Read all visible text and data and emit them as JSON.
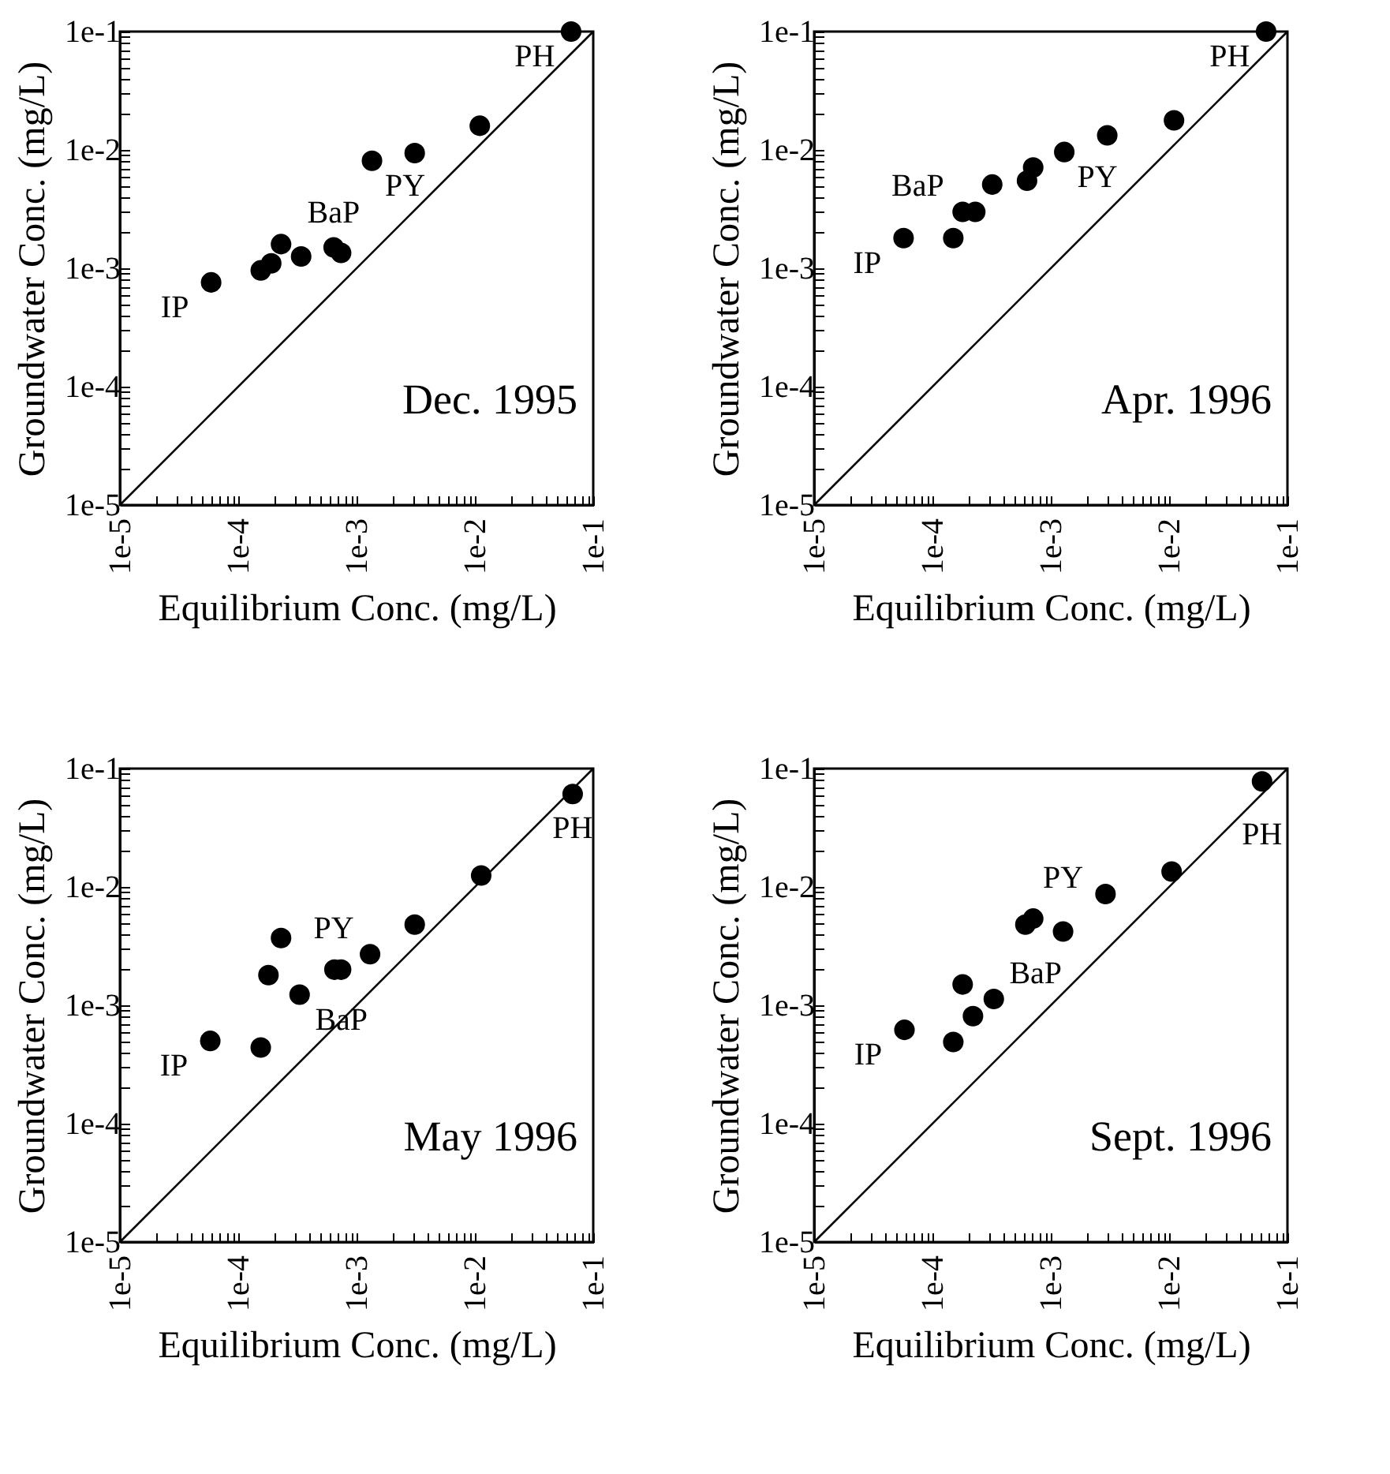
{
  "chart_data": [
    {
      "type": "scatter",
      "xlabel": "Equilibrium Conc. (mg/L)",
      "ylabel": "Groundwater Conc. (mg/L)",
      "log": "xy",
      "grid": false,
      "xlim": [
        1e-05,
        0.1
      ],
      "ylim": [
        1e-05,
        0.1
      ],
      "xticks": [
        {
          "value": 1e-05,
          "label": "1e-5"
        },
        {
          "value": 2e-05,
          "label": null
        },
        {
          "value": 3e-05,
          "label": null
        },
        {
          "value": 4e-05,
          "label": null
        },
        {
          "value": 5e-05,
          "label": null
        },
        {
          "value": 6e-05,
          "label": null
        },
        {
          "value": 7e-05,
          "label": null
        },
        {
          "value": 8e-05,
          "label": null
        },
        {
          "value": 9e-05,
          "label": null
        },
        {
          "value": 0.0001,
          "label": "1e-4"
        },
        {
          "value": 0.0002,
          "label": null
        },
        {
          "value": 0.0003,
          "label": null
        },
        {
          "value": 0.0004,
          "label": null
        },
        {
          "value": 0.0005,
          "label": null
        },
        {
          "value": 0.0006,
          "label": null
        },
        {
          "value": 0.0007,
          "label": null
        },
        {
          "value": 0.0008,
          "label": null
        },
        {
          "value": 0.0009,
          "label": null
        },
        {
          "value": 0.001,
          "label": "1e-3"
        },
        {
          "value": 0.002,
          "label": null
        },
        {
          "value": 0.003,
          "label": null
        },
        {
          "value": 0.004,
          "label": null
        },
        {
          "value": 0.005,
          "label": null
        },
        {
          "value": 0.006,
          "label": null
        },
        {
          "value": 0.007,
          "label": null
        },
        {
          "value": 0.008,
          "label": null
        },
        {
          "value": 0.009,
          "label": null
        },
        {
          "value": 0.01,
          "label": "1e-2"
        },
        {
          "value": 0.02,
          "label": null
        },
        {
          "value": 0.03,
          "label": null
        },
        {
          "value": 0.04,
          "label": null
        },
        {
          "value": 0.05,
          "label": null
        },
        {
          "value": 0.06,
          "label": null
        },
        {
          "value": 0.07,
          "label": null
        },
        {
          "value": 0.08,
          "label": null
        },
        {
          "value": 0.09,
          "label": null
        },
        {
          "value": 0.1,
          "label": "1e-1"
        }
      ],
      "yticks": [
        {
          "value": 1e-05,
          "label": "1e-5"
        },
        {
          "value": 2e-05,
          "label": null
        },
        {
          "value": 3e-05,
          "label": null
        },
        {
          "value": 4e-05,
          "label": null
        },
        {
          "value": 5e-05,
          "label": null
        },
        {
          "value": 6e-05,
          "label": null
        },
        {
          "value": 7e-05,
          "label": null
        },
        {
          "value": 8e-05,
          "label": null
        },
        {
          "value": 9e-05,
          "label": null
        },
        {
          "value": 0.0001,
          "label": "1e-4"
        },
        {
          "value": 0.0002,
          "label": null
        },
        {
          "value": 0.0003,
          "label": null
        },
        {
          "value": 0.0004,
          "label": null
        },
        {
          "value": 0.0005,
          "label": null
        },
        {
          "value": 0.0006,
          "label": null
        },
        {
          "value": 0.0007,
          "label": null
        },
        {
          "value": 0.0008,
          "label": null
        },
        {
          "value": 0.0009,
          "label": null
        },
        {
          "value": 0.001,
          "label": "1e-3"
        },
        {
          "value": 0.002,
          "label": null
        },
        {
          "value": 0.003,
          "label": null
        },
        {
          "value": 0.004,
          "label": null
        },
        {
          "value": 0.005,
          "label": null
        },
        {
          "value": 0.006,
          "label": null
        },
        {
          "value": 0.007,
          "label": null
        },
        {
          "value": 0.008,
          "label": null
        },
        {
          "value": 0.009,
          "label": null
        },
        {
          "value": 0.01,
          "label": "1e-2"
        },
        {
          "value": 0.02,
          "label": null
        },
        {
          "value": 0.03,
          "label": null
        },
        {
          "value": 0.04,
          "label": null
        },
        {
          "value": 0.05,
          "label": null
        },
        {
          "value": 0.06,
          "label": null
        },
        {
          "value": 0.07,
          "label": null
        },
        {
          "value": 0.08,
          "label": null
        },
        {
          "value": 0.09,
          "label": null
        },
        {
          "value": 0.1,
          "label": "1e-1"
        }
      ],
      "series": [
        {
          "color": "#000000",
          "marker": "circle",
          "x": [
            5.9e-05,
            0.000155,
            0.00019,
            0.00023,
            0.00034,
            0.00064,
            0.00074,
            0.00135,
            0.0031,
            0.011,
            0.065
          ],
          "values": [
            0.00076,
            0.00096,
            0.0011,
            0.0016,
            0.00126,
            0.0015,
            0.00135,
            0.0081,
            0.0094,
            0.016,
            0.1
          ],
          "value_labels": [
            "IP",
            null,
            null,
            null,
            null,
            "BaP",
            null,
            "PY",
            null,
            null,
            "PH"
          ]
        },
        {
          "type": "line",
          "color": "#000000",
          "marker": "none",
          "x": [
            1e-05,
            0.1
          ],
          "values": [
            1e-05,
            0.1
          ]
        }
      ],
      "annotations": [
        "Dec. 1995"
      ]
    },
    {
      "type": "scatter",
      "xlabel": "Equilibrium Conc. (mg/L)",
      "ylabel": "Groundwater Conc. (mg/L)",
      "log": "xy",
      "grid": false,
      "xlim": [
        1e-05,
        0.1
      ],
      "ylim": [
        1e-05,
        0.1
      ],
      "xticks": [
        {
          "value": 1e-05,
          "label": "1e-5"
        },
        {
          "value": 2e-05,
          "label": null
        },
        {
          "value": 3e-05,
          "label": null
        },
        {
          "value": 4e-05,
          "label": null
        },
        {
          "value": 5e-05,
          "label": null
        },
        {
          "value": 6e-05,
          "label": null
        },
        {
          "value": 7e-05,
          "label": null
        },
        {
          "value": 8e-05,
          "label": null
        },
        {
          "value": 9e-05,
          "label": null
        },
        {
          "value": 0.0001,
          "label": "1e-4"
        },
        {
          "value": 0.0002,
          "label": null
        },
        {
          "value": 0.0003,
          "label": null
        },
        {
          "value": 0.0004,
          "label": null
        },
        {
          "value": 0.0005,
          "label": null
        },
        {
          "value": 0.0006,
          "label": null
        },
        {
          "value": 0.0007,
          "label": null
        },
        {
          "value": 0.0008,
          "label": null
        },
        {
          "value": 0.0009,
          "label": null
        },
        {
          "value": 0.001,
          "label": "1e-3"
        },
        {
          "value": 0.002,
          "label": null
        },
        {
          "value": 0.003,
          "label": null
        },
        {
          "value": 0.004,
          "label": null
        },
        {
          "value": 0.005,
          "label": null
        },
        {
          "value": 0.006,
          "label": null
        },
        {
          "value": 0.007,
          "label": null
        },
        {
          "value": 0.008,
          "label": null
        },
        {
          "value": 0.009,
          "label": null
        },
        {
          "value": 0.01,
          "label": "1e-2"
        },
        {
          "value": 0.02,
          "label": null
        },
        {
          "value": 0.03,
          "label": null
        },
        {
          "value": 0.04,
          "label": null
        },
        {
          "value": 0.05,
          "label": null
        },
        {
          "value": 0.06,
          "label": null
        },
        {
          "value": 0.07,
          "label": null
        },
        {
          "value": 0.08,
          "label": null
        },
        {
          "value": 0.09,
          "label": null
        },
        {
          "value": 0.1,
          "label": "1e-1"
        }
      ],
      "yticks": [
        {
          "value": 1e-05,
          "label": "1e-5"
        },
        {
          "value": 2e-05,
          "label": null
        },
        {
          "value": 3e-05,
          "label": null
        },
        {
          "value": 4e-05,
          "label": null
        },
        {
          "value": 5e-05,
          "label": null
        },
        {
          "value": 6e-05,
          "label": null
        },
        {
          "value": 7e-05,
          "label": null
        },
        {
          "value": 8e-05,
          "label": null
        },
        {
          "value": 9e-05,
          "label": null
        },
        {
          "value": 0.0001,
          "label": "1e-4"
        },
        {
          "value": 0.0002,
          "label": null
        },
        {
          "value": 0.0003,
          "label": null
        },
        {
          "value": 0.0004,
          "label": null
        },
        {
          "value": 0.0005,
          "label": null
        },
        {
          "value": 0.0006,
          "label": null
        },
        {
          "value": 0.0007,
          "label": null
        },
        {
          "value": 0.0008,
          "label": null
        },
        {
          "value": 0.0009,
          "label": null
        },
        {
          "value": 0.001,
          "label": "1e-3"
        },
        {
          "value": 0.002,
          "label": null
        },
        {
          "value": 0.003,
          "label": null
        },
        {
          "value": 0.004,
          "label": null
        },
        {
          "value": 0.005,
          "label": null
        },
        {
          "value": 0.006,
          "label": null
        },
        {
          "value": 0.007,
          "label": null
        },
        {
          "value": 0.008,
          "label": null
        },
        {
          "value": 0.009,
          "label": null
        },
        {
          "value": 0.01,
          "label": "1e-2"
        },
        {
          "value": 0.02,
          "label": null
        },
        {
          "value": 0.03,
          "label": null
        },
        {
          "value": 0.04,
          "label": null
        },
        {
          "value": 0.05,
          "label": null
        },
        {
          "value": 0.06,
          "label": null
        },
        {
          "value": 0.07,
          "label": null
        },
        {
          "value": 0.08,
          "label": null
        },
        {
          "value": 0.09,
          "label": null
        },
        {
          "value": 0.1,
          "label": "1e-1"
        }
      ],
      "series": [
        {
          "color": "#000000",
          "marker": "circle",
          "x": [
            5.7e-05,
            0.00015,
            0.00018,
            0.00023,
            0.00032,
            0.00063,
            0.00071,
            0.0013,
            0.003,
            0.011,
            0.066
          ],
          "values": [
            0.0018,
            0.0018,
            0.003,
            0.003,
            0.0051,
            0.0055,
            0.0071,
            0.0096,
            0.0133,
            0.0178,
            0.1
          ],
          "value_labels": [
            "IP",
            null,
            "BaP",
            null,
            null,
            null,
            null,
            "PY",
            null,
            null,
            "PH"
          ]
        },
        {
          "type": "line",
          "color": "#000000",
          "marker": "none",
          "x": [
            1e-05,
            0.1
          ],
          "values": [
            1e-05,
            0.1
          ]
        }
      ],
      "annotations": [
        "Apr. 1996"
      ]
    },
    {
      "type": "scatter",
      "xlabel": "Equilibrium Conc. (mg/L)",
      "ylabel": "Groundwater Conc. (mg/L)",
      "log": "xy",
      "grid": false,
      "xlim": [
        1e-05,
        0.1
      ],
      "ylim": [
        1e-05,
        0.1
      ],
      "xticks": [
        {
          "value": 1e-05,
          "label": "1e-5"
        },
        {
          "value": 2e-05,
          "label": null
        },
        {
          "value": 3e-05,
          "label": null
        },
        {
          "value": 4e-05,
          "label": null
        },
        {
          "value": 5e-05,
          "label": null
        },
        {
          "value": 6e-05,
          "label": null
        },
        {
          "value": 7e-05,
          "label": null
        },
        {
          "value": 8e-05,
          "label": null
        },
        {
          "value": 9e-05,
          "label": null
        },
        {
          "value": 0.0001,
          "label": "1e-4"
        },
        {
          "value": 0.0002,
          "label": null
        },
        {
          "value": 0.0003,
          "label": null
        },
        {
          "value": 0.0004,
          "label": null
        },
        {
          "value": 0.0005,
          "label": null
        },
        {
          "value": 0.0006,
          "label": null
        },
        {
          "value": 0.0007,
          "label": null
        },
        {
          "value": 0.0008,
          "label": null
        },
        {
          "value": 0.0009,
          "label": null
        },
        {
          "value": 0.001,
          "label": "1e-3"
        },
        {
          "value": 0.002,
          "label": null
        },
        {
          "value": 0.003,
          "label": null
        },
        {
          "value": 0.004,
          "label": null
        },
        {
          "value": 0.005,
          "label": null
        },
        {
          "value": 0.006,
          "label": null
        },
        {
          "value": 0.007,
          "label": null
        },
        {
          "value": 0.008,
          "label": null
        },
        {
          "value": 0.009,
          "label": null
        },
        {
          "value": 0.01,
          "label": "1e-2"
        },
        {
          "value": 0.02,
          "label": null
        },
        {
          "value": 0.03,
          "label": null
        },
        {
          "value": 0.04,
          "label": null
        },
        {
          "value": 0.05,
          "label": null
        },
        {
          "value": 0.06,
          "label": null
        },
        {
          "value": 0.07,
          "label": null
        },
        {
          "value": 0.08,
          "label": null
        },
        {
          "value": 0.09,
          "label": null
        },
        {
          "value": 0.1,
          "label": "1e-1"
        }
      ],
      "yticks": [
        {
          "value": 1e-05,
          "label": "1e-5"
        },
        {
          "value": 2e-05,
          "label": null
        },
        {
          "value": 3e-05,
          "label": null
        },
        {
          "value": 4e-05,
          "label": null
        },
        {
          "value": 5e-05,
          "label": null
        },
        {
          "value": 6e-05,
          "label": null
        },
        {
          "value": 7e-05,
          "label": null
        },
        {
          "value": 8e-05,
          "label": null
        },
        {
          "value": 9e-05,
          "label": null
        },
        {
          "value": 0.0001,
          "label": "1e-4"
        },
        {
          "value": 0.0002,
          "label": null
        },
        {
          "value": 0.0003,
          "label": null
        },
        {
          "value": 0.0004,
          "label": null
        },
        {
          "value": 0.0005,
          "label": null
        },
        {
          "value": 0.0006,
          "label": null
        },
        {
          "value": 0.0007,
          "label": null
        },
        {
          "value": 0.0008,
          "label": null
        },
        {
          "value": 0.0009,
          "label": null
        },
        {
          "value": 0.001,
          "label": "1e-3"
        },
        {
          "value": 0.002,
          "label": null
        },
        {
          "value": 0.003,
          "label": null
        },
        {
          "value": 0.004,
          "label": null
        },
        {
          "value": 0.005,
          "label": null
        },
        {
          "value": 0.006,
          "label": null
        },
        {
          "value": 0.007,
          "label": null
        },
        {
          "value": 0.008,
          "label": null
        },
        {
          "value": 0.009,
          "label": null
        },
        {
          "value": 0.01,
          "label": "1e-2"
        },
        {
          "value": 0.02,
          "label": null
        },
        {
          "value": 0.03,
          "label": null
        },
        {
          "value": 0.04,
          "label": null
        },
        {
          "value": 0.05,
          "label": null
        },
        {
          "value": 0.06,
          "label": null
        },
        {
          "value": 0.07,
          "label": null
        },
        {
          "value": 0.08,
          "label": null
        },
        {
          "value": 0.09,
          "label": null
        },
        {
          "value": 0.1,
          "label": "1e-1"
        }
      ],
      "series": [
        {
          "color": "#000000",
          "marker": "circle",
          "x": [
            5.8e-05,
            0.000155,
            0.00018,
            0.00023,
            0.00033,
            0.00065,
            0.00074,
            0.0013,
            0.0031,
            0.0113,
            0.067
          ],
          "values": [
            0.0005,
            0.00044,
            0.0018,
            0.0037,
            0.00123,
            0.002,
            0.002,
            0.0027,
            0.0048,
            0.0125,
            0.061
          ],
          "value_labels": [
            "IP",
            null,
            null,
            null,
            "BaP",
            null,
            null,
            "PY",
            null,
            null,
            "PH"
          ]
        },
        {
          "type": "line",
          "color": "#000000",
          "marker": "none",
          "x": [
            1e-05,
            0.1
          ],
          "values": [
            1e-05,
            0.1
          ]
        }
      ],
      "annotations": [
        "May 1996"
      ]
    },
    {
      "type": "scatter",
      "xlabel": "Equilibrium Conc. (mg/L)",
      "ylabel": "Groundwater Conc. (mg/L)",
      "log": "xy",
      "grid": false,
      "xlim": [
        1e-05,
        0.1
      ],
      "ylim": [
        1e-05,
        0.1
      ],
      "xticks": [
        {
          "value": 1e-05,
          "label": "1e-5"
        },
        {
          "value": 2e-05,
          "label": null
        },
        {
          "value": 3e-05,
          "label": null
        },
        {
          "value": 4e-05,
          "label": null
        },
        {
          "value": 5e-05,
          "label": null
        },
        {
          "value": 6e-05,
          "label": null
        },
        {
          "value": 7e-05,
          "label": null
        },
        {
          "value": 8e-05,
          "label": null
        },
        {
          "value": 9e-05,
          "label": null
        },
        {
          "value": 0.0001,
          "label": "1e-4"
        },
        {
          "value": 0.0002,
          "label": null
        },
        {
          "value": 0.0003,
          "label": null
        },
        {
          "value": 0.0004,
          "label": null
        },
        {
          "value": 0.0005,
          "label": null
        },
        {
          "value": 0.0006,
          "label": null
        },
        {
          "value": 0.0007,
          "label": null
        },
        {
          "value": 0.0008,
          "label": null
        },
        {
          "value": 0.0009,
          "label": null
        },
        {
          "value": 0.001,
          "label": "1e-3"
        },
        {
          "value": 0.002,
          "label": null
        },
        {
          "value": 0.003,
          "label": null
        },
        {
          "value": 0.004,
          "label": null
        },
        {
          "value": 0.005,
          "label": null
        },
        {
          "value": 0.006,
          "label": null
        },
        {
          "value": 0.007,
          "label": null
        },
        {
          "value": 0.008,
          "label": null
        },
        {
          "value": 0.009,
          "label": null
        },
        {
          "value": 0.01,
          "label": "1e-2"
        },
        {
          "value": 0.02,
          "label": null
        },
        {
          "value": 0.03,
          "label": null
        },
        {
          "value": 0.04,
          "label": null
        },
        {
          "value": 0.05,
          "label": null
        },
        {
          "value": 0.06,
          "label": null
        },
        {
          "value": 0.07,
          "label": null
        },
        {
          "value": 0.08,
          "label": null
        },
        {
          "value": 0.09,
          "label": null
        },
        {
          "value": 0.1,
          "label": "1e-1"
        }
      ],
      "yticks": [
        {
          "value": 1e-05,
          "label": "1e-5"
        },
        {
          "value": 2e-05,
          "label": null
        },
        {
          "value": 3e-05,
          "label": null
        },
        {
          "value": 4e-05,
          "label": null
        },
        {
          "value": 5e-05,
          "label": null
        },
        {
          "value": 6e-05,
          "label": null
        },
        {
          "value": 7e-05,
          "label": null
        },
        {
          "value": 8e-05,
          "label": null
        },
        {
          "value": 9e-05,
          "label": null
        },
        {
          "value": 0.0001,
          "label": "1e-4"
        },
        {
          "value": 0.0002,
          "label": null
        },
        {
          "value": 0.0003,
          "label": null
        },
        {
          "value": 0.0004,
          "label": null
        },
        {
          "value": 0.0005,
          "label": null
        },
        {
          "value": 0.0006,
          "label": null
        },
        {
          "value": 0.0007,
          "label": null
        },
        {
          "value": 0.0008,
          "label": null
        },
        {
          "value": 0.0009,
          "label": null
        },
        {
          "value": 0.001,
          "label": "1e-3"
        },
        {
          "value": 0.002,
          "label": null
        },
        {
          "value": 0.003,
          "label": null
        },
        {
          "value": 0.004,
          "label": null
        },
        {
          "value": 0.005,
          "label": null
        },
        {
          "value": 0.006,
          "label": null
        },
        {
          "value": 0.007,
          "label": null
        },
        {
          "value": 0.008,
          "label": null
        },
        {
          "value": 0.009,
          "label": null
        },
        {
          "value": 0.01,
          "label": "1e-2"
        },
        {
          "value": 0.02,
          "label": null
        },
        {
          "value": 0.03,
          "label": null
        },
        {
          "value": 0.04,
          "label": null
        },
        {
          "value": 0.05,
          "label": null
        },
        {
          "value": 0.06,
          "label": null
        },
        {
          "value": 0.07,
          "label": null
        },
        {
          "value": 0.08,
          "label": null
        },
        {
          "value": 0.09,
          "label": null
        },
        {
          "value": 0.1,
          "label": "1e-1"
        }
      ],
      "series": [
        {
          "color": "#000000",
          "marker": "circle",
          "x": [
            5.8e-05,
            0.00015,
            0.00018,
            0.00022,
            0.00033,
            0.00061,
            0.00071,
            0.00127,
            0.0029,
            0.0105,
            0.061
          ],
          "values": [
            0.00062,
            0.00049,
            0.0015,
            0.00081,
            0.00113,
            0.0048,
            0.0054,
            0.0042,
            0.0087,
            0.0135,
            0.078
          ],
          "value_labels": [
            "IP",
            null,
            null,
            null,
            "BaP",
            null,
            null,
            "PY",
            null,
            null,
            "PH"
          ]
        },
        {
          "type": "line",
          "color": "#000000",
          "marker": "none",
          "x": [
            1e-05,
            0.1
          ],
          "values": [
            1e-05,
            0.1
          ]
        }
      ],
      "annotations": [
        "Sept. 1996"
      ]
    }
  ]
}
